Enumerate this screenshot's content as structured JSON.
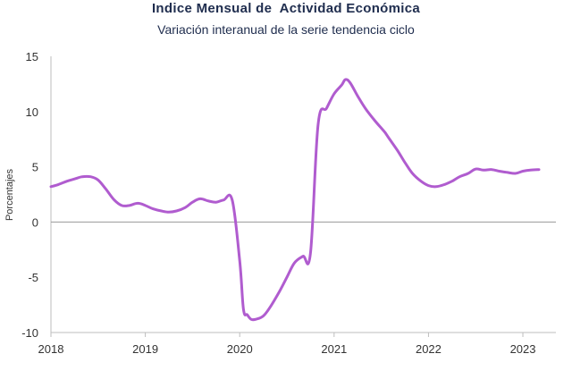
{
  "chart_data": {
    "type": "line",
    "title": "Indice Mensual de  Actividad Económica",
    "subtitle": "Variación interanual de la serie tendencia ciclo",
    "xlabel": "",
    "ylabel": "Porcentajes",
    "ylim": [
      -10,
      15
    ],
    "y_ticks": [
      15,
      10,
      5,
      0,
      -5,
      -10
    ],
    "y_tick_labels": [
      "15",
      "10",
      "5",
      "0",
      "-5",
      "-10"
    ],
    "x_ticks": [
      "2018",
      "2019",
      "2020",
      "2021",
      "2022",
      "2023"
    ],
    "negative_tick_color": "#e03030",
    "line_color": "#b05ccf",
    "grid": false,
    "series": [
      {
        "x": [
          2018.0,
          2018.08,
          2018.17,
          2018.25,
          2018.33,
          2018.42,
          2018.5,
          2018.58,
          2018.67,
          2018.75,
          2018.83,
          2018.92,
          2019.0,
          2019.08,
          2019.17,
          2019.25,
          2019.33,
          2019.42,
          2019.5,
          2019.58,
          2019.67,
          2019.75,
          2019.83,
          2019.92,
          2020.0,
          2020.04,
          2020.08,
          2020.12,
          2020.17,
          2020.25,
          2020.33,
          2020.42,
          2020.5,
          2020.58,
          2020.67,
          2020.75,
          2020.83,
          2020.92,
          2021.0,
          2021.08,
          2021.12,
          2021.17,
          2021.25,
          2021.33,
          2021.42,
          2021.5,
          2021.54,
          2021.58,
          2021.67,
          2021.75,
          2021.83,
          2021.92,
          2022.0,
          2022.08,
          2022.17,
          2022.25,
          2022.33,
          2022.42,
          2022.5,
          2022.58,
          2022.67,
          2022.75,
          2022.83,
          2022.92,
          2023.0,
          2023.08,
          2023.17
        ],
        "values": [
          3.2,
          3.4,
          3.7,
          3.9,
          4.1,
          4.1,
          3.8,
          3.0,
          2.0,
          1.5,
          1.5,
          1.7,
          1.5,
          1.2,
          1.0,
          0.9,
          1.0,
          1.3,
          1.8,
          2.1,
          1.9,
          1.8,
          2.0,
          2.0,
          -3.5,
          -7.9,
          -8.4,
          -8.8,
          -8.8,
          -8.5,
          -7.6,
          -6.3,
          -5.0,
          -3.7,
          -3.1,
          -2.8,
          8.8,
          10.3,
          11.6,
          12.4,
          12.9,
          12.6,
          11.4,
          10.3,
          9.3,
          8.5,
          8.1,
          7.6,
          6.5,
          5.4,
          4.4,
          3.7,
          3.3,
          3.2,
          3.4,
          3.7,
          4.1,
          4.4,
          4.8,
          4.7,
          4.75,
          4.6,
          4.5,
          4.4,
          4.6,
          4.7,
          4.75
        ]
      }
    ]
  }
}
